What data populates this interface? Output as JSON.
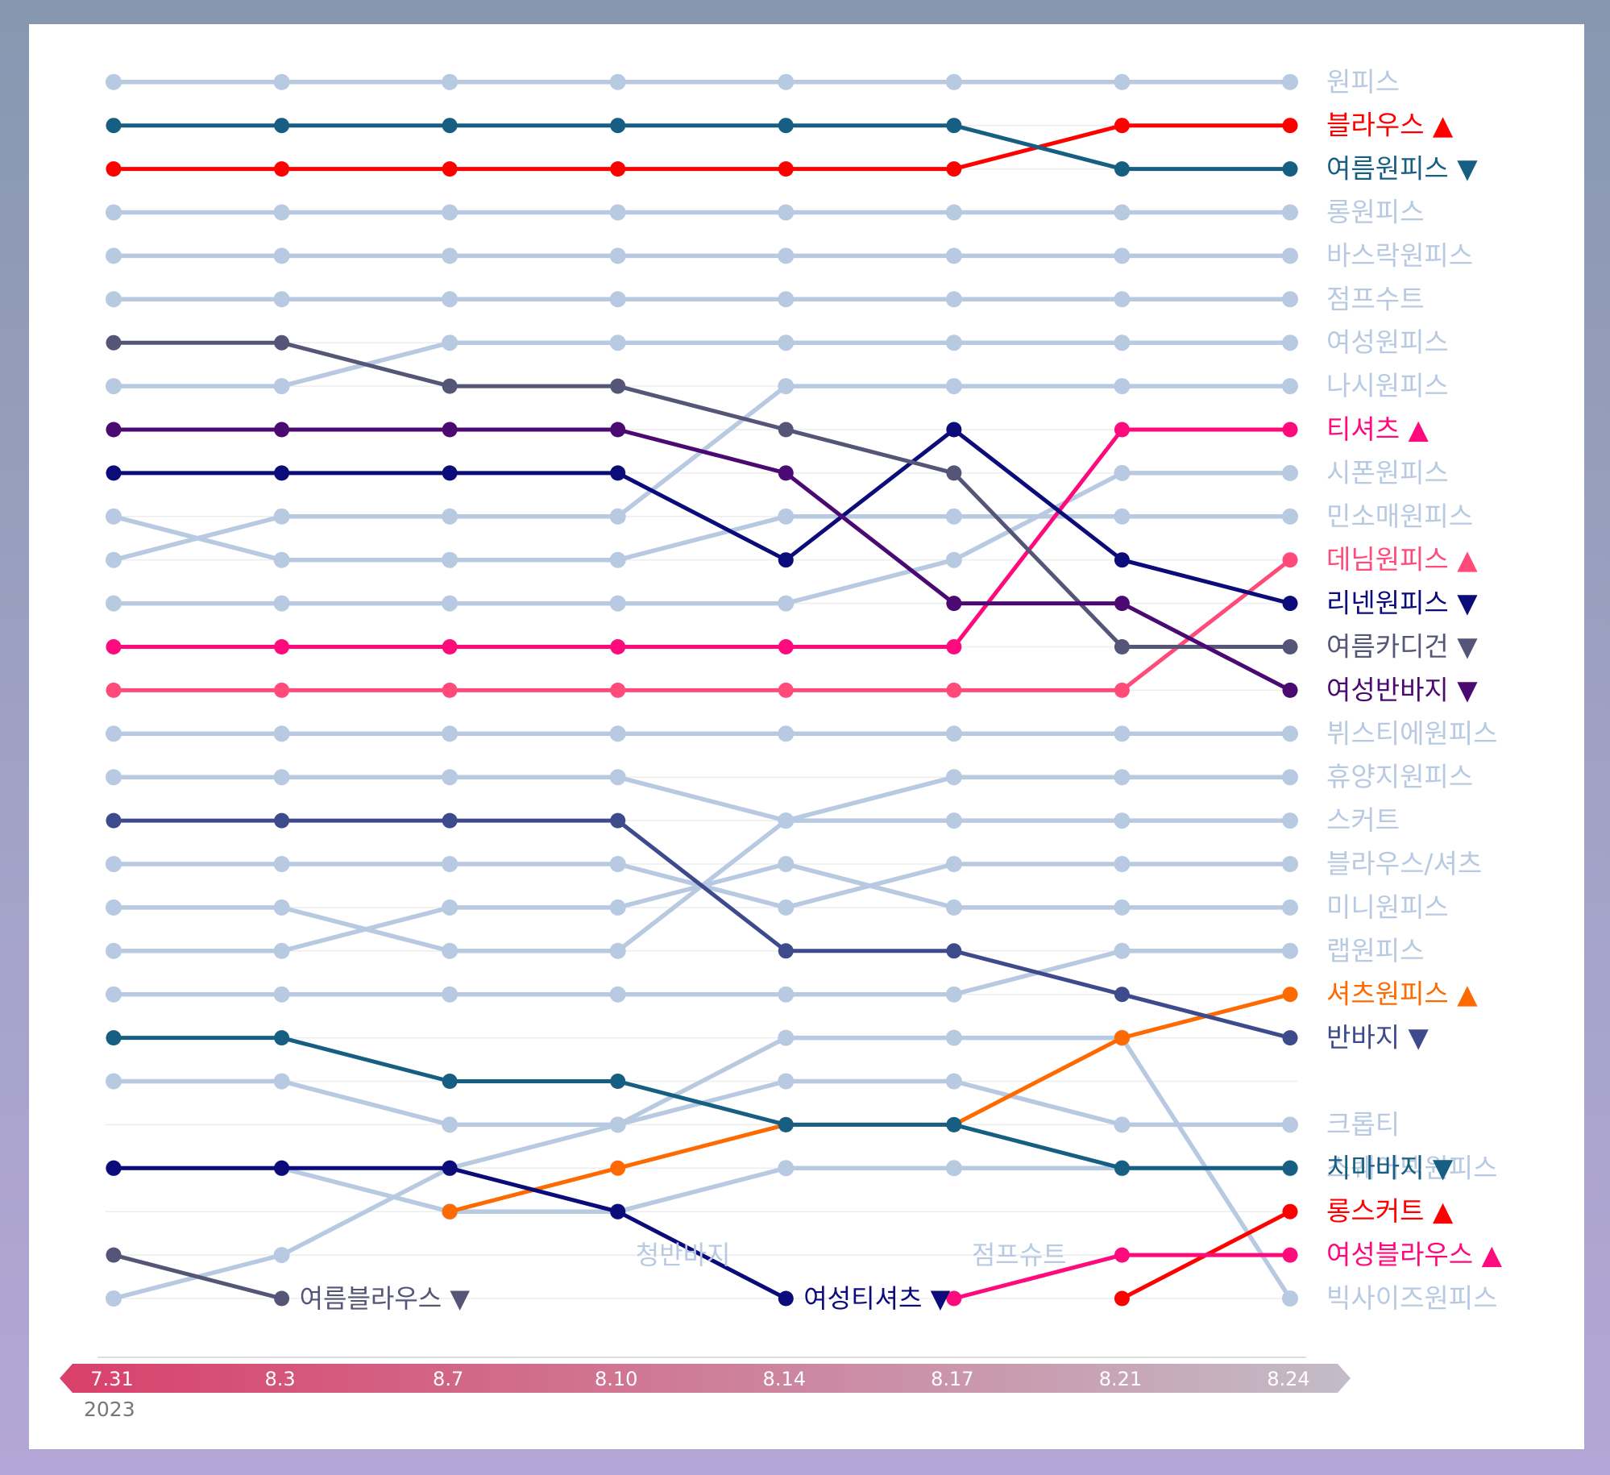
{
  "chart_data": {
    "type": "line",
    "subtype": "bump",
    "x": [
      "7.31",
      "8.3",
      "8.7",
      "8.10",
      "8.14",
      "8.17",
      "8.21",
      "8.24"
    ],
    "year": "2023",
    "rank_count": 29,
    "colors": {
      "background": "#b8c9e2",
      "axis_start": "#d9406a",
      "axis_end": "#c3bcc8",
      "grid": "#eeeeee"
    },
    "series": [
      {
        "name": "원피스",
        "ranks": [
          1,
          1,
          1,
          1,
          1,
          1,
          1,
          1
        ],
        "color": "#b8c9e2",
        "highlight": false,
        "end_label": "원피스"
      },
      {
        "name": "롱원피스",
        "ranks": [
          4,
          4,
          4,
          4,
          4,
          4,
          4,
          4
        ],
        "color": "#b8c9e2",
        "highlight": false,
        "end_label": "롱원피스"
      },
      {
        "name": "바스락원피스",
        "ranks": [
          5,
          5,
          5,
          5,
          5,
          5,
          5,
          5
        ],
        "color": "#b8c9e2",
        "highlight": false,
        "end_label": "바스락원피스"
      },
      {
        "name": "점프수트",
        "ranks": [
          6,
          6,
          6,
          6,
          6,
          6,
          6,
          6
        ],
        "color": "#b8c9e2",
        "highlight": false,
        "end_label": "점프수트"
      },
      {
        "name": "여성원피스",
        "ranks": [
          8,
          8,
          7,
          7,
          7,
          7,
          7,
          7
        ],
        "color": "#b8c9e2",
        "highlight": false,
        "end_label": "여성원피스"
      },
      {
        "name": "나시원피스",
        "ranks": [
          12,
          11,
          11,
          11,
          8,
          8,
          8,
          8
        ],
        "color": "#b8c9e2",
        "highlight": false,
        "end_label": "나시원피스"
      },
      {
        "name": "시폰원피스",
        "ranks": [
          13,
          13,
          13,
          13,
          13,
          12,
          10,
          10
        ],
        "color": "#b8c9e2",
        "highlight": false,
        "end_label": "시폰원피스"
      },
      {
        "name": "민소매원피스",
        "ranks": [
          11,
          12,
          12,
          12,
          11,
          11,
          11,
          11
        ],
        "color": "#b8c9e2",
        "highlight": false,
        "end_label": "민소매원피스"
      },
      {
        "name": "뷔스티에원피스",
        "ranks": [
          16,
          16,
          16,
          16,
          16,
          16,
          16,
          16
        ],
        "color": "#b8c9e2",
        "highlight": false,
        "end_label": "뷔스티에원피스"
      },
      {
        "name": "휴양지원피스",
        "ranks": [
          17,
          17,
          17,
          17,
          18,
          17,
          17,
          17
        ],
        "color": "#b8c9e2",
        "highlight": false,
        "end_label": "휴양지원피스"
      },
      {
        "name": "스커트",
        "ranks": [
          20,
          20,
          21,
          21,
          18,
          18,
          18,
          18
        ],
        "color": "#b8c9e2",
        "highlight": false,
        "end_label": "스커트"
      },
      {
        "name": "블라우스/셔츠",
        "ranks": [
          19,
          19,
          19,
          19,
          20,
          19,
          19,
          19
        ],
        "color": "#b8c9e2",
        "highlight": false,
        "end_label": "블라우스/셔츠"
      },
      {
        "name": "미니원피스",
        "ranks": [
          21,
          21,
          20,
          20,
          19,
          20,
          20,
          20
        ],
        "color": "#b8c9e2",
        "highlight": false,
        "end_label": "미니원피스"
      },
      {
        "name": "랩원피스",
        "ranks": [
          22,
          22,
          22,
          22,
          22,
          22,
          21,
          21
        ],
        "color": "#b8c9e2",
        "highlight": false,
        "end_label": "랩원피스"
      },
      {
        "name": "크롭티",
        "ranks": [
          24,
          24,
          25,
          25,
          24,
          24,
          25,
          25
        ],
        "color": "#b8c9e2",
        "highlight": false,
        "end_label": "크롭티"
      },
      {
        "name": "스퀘어넥원피스",
        "ranks": [
          26,
          26,
          27,
          27,
          26,
          26,
          26,
          26
        ],
        "color": "#b8c9e2",
        "highlight": false,
        "end_label": "스퀘어넥원피스"
      },
      {
        "name": "빅사이즈원피스",
        "ranks": [
          29,
          28,
          26,
          25,
          23,
          23,
          23,
          29
        ],
        "color": "#b8c9e2",
        "highlight": false,
        "end_label": "빅사이즈원피스"
      },
      {
        "name": "청반바지",
        "ranks": [
          null,
          null,
          null,
          null,
          null,
          null,
          null,
          null
        ],
        "color": "#b8c9e2",
        "highlight": false,
        "end_label": null
      },
      {
        "name": "점프슈트",
        "ranks": [
          null,
          null,
          null,
          null,
          null,
          null,
          null,
          null
        ],
        "color": "#b8c9e2",
        "highlight": false,
        "end_label": null
      },
      {
        "name": "블라우스",
        "ranks": [
          3,
          3,
          3,
          3,
          3,
          3,
          2,
          2
        ],
        "color": "#ff0000",
        "highlight": true,
        "end_label": "블라우스 ▲"
      },
      {
        "name": "여름원피스",
        "ranks": [
          2,
          2,
          2,
          2,
          2,
          2,
          3,
          3
        ],
        "color": "#175f82",
        "highlight": true,
        "end_label": "여름원피스 ▼"
      },
      {
        "name": "티셔츠",
        "ranks": [
          14,
          14,
          14,
          14,
          14,
          14,
          9,
          9
        ],
        "color": "#ff0a7c",
        "highlight": true,
        "end_label": "티셔츠 ▲"
      },
      {
        "name": "데님원피스",
        "ranks": [
          15,
          15,
          15,
          15,
          15,
          15,
          15,
          12
        ],
        "color": "#ff4a7a",
        "highlight": true,
        "end_label": "데님원피스 ▲"
      },
      {
        "name": "리넨원피스",
        "ranks": [
          10,
          10,
          10,
          10,
          12,
          9,
          12,
          13
        ],
        "color": "#0b0b7a",
        "highlight": true,
        "end_label": "리넨원피스 ▼"
      },
      {
        "name": "여름카디건",
        "ranks": [
          7,
          7,
          8,
          8,
          9,
          10,
          14,
          14
        ],
        "color": "#555577",
        "highlight": true,
        "end_label": "여름카디건 ▼"
      },
      {
        "name": "여성반바지",
        "ranks": [
          9,
          9,
          9,
          9,
          10,
          13,
          13,
          15
        ],
        "color": "#4a0a72",
        "highlight": true,
        "end_label": "여성반바지 ▼"
      },
      {
        "name": "셔츠원피스",
        "ranks": [
          null,
          null,
          27,
          26,
          25,
          25,
          23,
          22
        ],
        "color": "#ff6a00",
        "highlight": true,
        "end_label": "셔츠원피스 ▲"
      },
      {
        "name": "반바지",
        "ranks": [
          18,
          18,
          18,
          18,
          21,
          21,
          22,
          23
        ],
        "color": "#3d4b8c",
        "highlight": true,
        "end_label": "반바지 ▼"
      },
      {
        "name": "치마바지",
        "ranks": [
          23,
          23,
          24,
          24,
          25,
          25,
          26,
          26
        ],
        "color": "#175f82",
        "highlight": true,
        "end_label": "치마바지 ▼"
      },
      {
        "name": "롱스커트",
        "ranks": [
          null,
          null,
          null,
          null,
          null,
          null,
          29,
          27
        ],
        "color": "#ff0000",
        "highlight": true,
        "end_label": "롱스커트 ▲"
      },
      {
        "name": "여성블라우스",
        "ranks": [
          null,
          null,
          null,
          null,
          null,
          29,
          28,
          28
        ],
        "color": "#ff0a7c",
        "highlight": true,
        "end_label": "여성블라우스 ▲"
      },
      {
        "name": "여름블라우스",
        "ranks": [
          28,
          29,
          null,
          null,
          null,
          null,
          null,
          null
        ],
        "color": "#555577",
        "highlight": true,
        "end_label": null
      },
      {
        "name": "여성티셔츠",
        "ranks": [
          26,
          26,
          26,
          27,
          29,
          null,
          null,
          null
        ],
        "color": "#0b0b7a",
        "highlight": true,
        "end_label": null
      }
    ],
    "inline_labels": [
      {
        "text": "여름블라우스 ▼",
        "series": "여름블라우스",
        "x": "8.3",
        "rank": 29,
        "color": "#555577"
      },
      {
        "text": "여성티셔츠 ▼",
        "series": "여성티셔츠",
        "x": "8.14",
        "rank": 29,
        "color": "#0b0b7a"
      },
      {
        "text": "청반바지",
        "series": "청반바지",
        "x": "8.10",
        "rank": 28,
        "color": "#b8c9e2"
      },
      {
        "text": "점프슈트",
        "series": "점프슈트",
        "x": "8.17",
        "rank": 28,
        "color": "#b8c9e2"
      }
    ]
  }
}
